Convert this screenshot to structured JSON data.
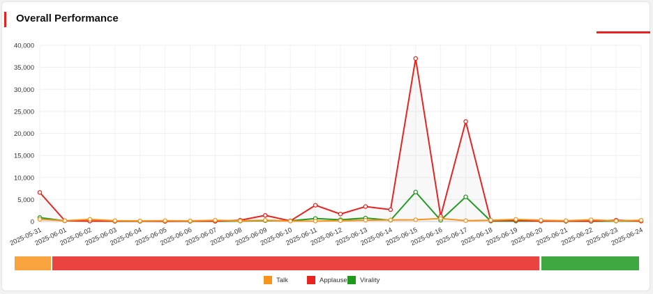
{
  "header": {
    "title": "Overall Performance"
  },
  "colors": {
    "talk": "#f7941d",
    "applause": "#e8231f",
    "virality": "#1f9a1f",
    "accent": "#e8231f"
  },
  "chart_data": {
    "type": "line",
    "x": [
      "2025-05-31",
      "2025-06-01",
      "2025-06-02",
      "2025-06-03",
      "2025-06-04",
      "2025-06-05",
      "2025-06-06",
      "2025-06-07",
      "2025-06-08",
      "2025-06-09",
      "2025-06-10",
      "2025-06-11",
      "2025-06-12",
      "2025-06-13",
      "2025-06-14",
      "2025-06-15",
      "2025-06-16",
      "2025-06-17",
      "2025-06-18",
      "2025-06-19",
      "2025-06-20",
      "2025-06-21",
      "2025-06-22",
      "2025-06-23",
      "2025-06-24"
    ],
    "series": [
      {
        "name": "Talk",
        "values": [
          500,
          200,
          500,
          200,
          150,
          200,
          150,
          300,
          150,
          300,
          100,
          100,
          200,
          300,
          350,
          400,
          700,
          200,
          300,
          500,
          300,
          200,
          400,
          150,
          300
        ]
      },
      {
        "name": "Applause",
        "values": [
          6600,
          200,
          100,
          100,
          100,
          50,
          100,
          100,
          300,
          1400,
          150,
          3700,
          1700,
          3400,
          2700,
          37000,
          1200,
          22700,
          200,
          300,
          100,
          100,
          100,
          300,
          100
        ]
      },
      {
        "name": "Virality",
        "values": [
          900,
          150,
          100,
          50,
          50,
          50,
          50,
          50,
          100,
          200,
          150,
          700,
          400,
          800,
          300,
          6700,
          300,
          5600,
          100,
          100,
          100,
          50,
          50,
          100,
          100
        ]
      }
    ],
    "ylim": [
      0,
      40000
    ],
    "yticks": [
      "0",
      "5,000",
      "10,000",
      "15,000",
      "20,000",
      "25,000",
      "30,000",
      "35,000",
      "40,000"
    ],
    "yticks_values": [
      0,
      5000,
      10000,
      15000,
      20000,
      25000,
      30000,
      35000,
      40000
    ],
    "grid": true,
    "legend": {
      "position": "bottom",
      "labels": [
        "Talk",
        "Applause",
        "Virality"
      ]
    },
    "navigator": true
  }
}
